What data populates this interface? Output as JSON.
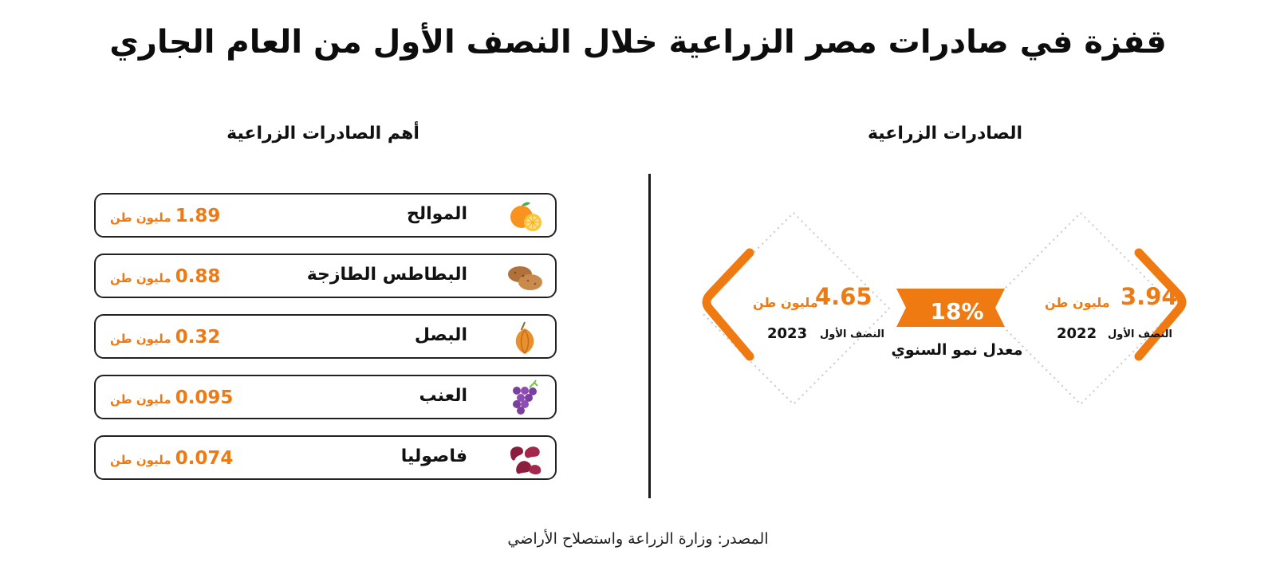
{
  "title": "قفزة في صادرات مصر الزراعية خلال النصف الأول من العام الجاري",
  "top_exports": {
    "heading": "أهم الصادرات الزراعية",
    "items": [
      {
        "name": "الموالح",
        "value": "1.89",
        "unit": "مليون طن",
        "icon": "orange-icon"
      },
      {
        "name": "البطاطس الطازجة",
        "value": "0.88",
        "unit": "مليون طن",
        "icon": "potato-icon"
      },
      {
        "name": "البصل",
        "value": "0.32",
        "unit": "مليون طن",
        "icon": "onion-icon"
      },
      {
        "name": "العنب",
        "value": "0.095",
        "unit": "مليون طن",
        "icon": "grapes-icon"
      },
      {
        "name": "فاصوليا",
        "value": "0.074",
        "unit": "مليون طن",
        "icon": "beans-icon"
      }
    ]
  },
  "exports": {
    "heading": "الصادرات الزراعية",
    "h1_2022": {
      "value": "3.94",
      "unit": "مليون طن",
      "period": "النصف الأول",
      "year": "2022"
    },
    "h1_2023": {
      "value": "4.65",
      "unit": "مليون طن",
      "period": "النصف الأول",
      "year": "2023"
    },
    "growth": {
      "value": "18%",
      "label": "معدل نمو السنوي"
    }
  },
  "source": "المصدر: وزارة الزراعة واستصلاح الأراضي",
  "colors": {
    "accent": "#f07a12",
    "text": "#111111",
    "divider": "#1a1a1a"
  }
}
